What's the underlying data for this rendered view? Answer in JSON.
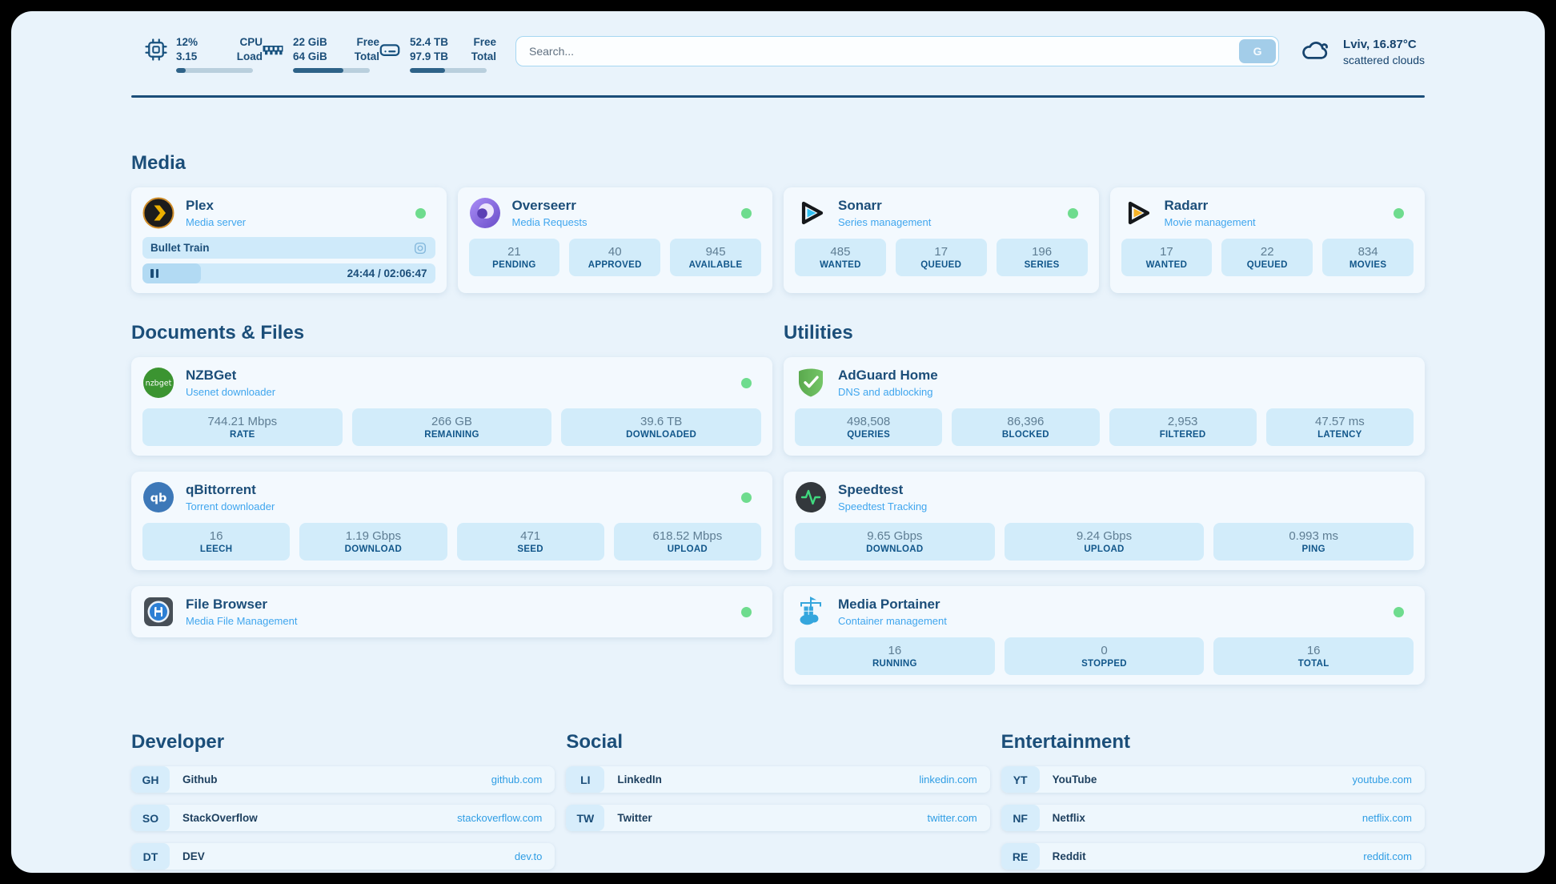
{
  "colors": {
    "page_background": "#e9f3fb",
    "accent_navy": "#1b4e79",
    "subtitle_blue": "#40a6ee",
    "link_blue": "#2f9de4",
    "stat_box_blue": "#d2ecfa",
    "status_green": "#6edc8e"
  },
  "topbar": {
    "cpu": {
      "value_top": "12%",
      "label_top": "CPU",
      "value_bottom": "3.15",
      "label_bottom": "Load",
      "progress_percent": 12
    },
    "ram": {
      "value_top": "22 GiB",
      "label_top": "Free",
      "value_bottom": "64 GiB",
      "label_bottom": "Total",
      "progress_percent": 66
    },
    "disk": {
      "value_top": "52.4 TB",
      "label_top": "Free",
      "value_bottom": "97.9 TB",
      "label_bottom": "Total",
      "progress_percent": 46
    },
    "search": {
      "placeholder": "Search...",
      "provider_button": "G"
    },
    "weather": {
      "location_temp": "Lviv, 16.87°C",
      "condition": "scattered clouds"
    }
  },
  "sections": {
    "media": "Media",
    "documents": "Documents & Files",
    "utilities": "Utilities",
    "developer": "Developer",
    "social": "Social",
    "entertainment": "Entertainment"
  },
  "services": {
    "plex": {
      "name": "Plex",
      "description": "Media server",
      "status": "online",
      "now_playing": {
        "title": "Bullet Train",
        "time": "24:44 / 02:06:47",
        "progress_percent": 20
      }
    },
    "overseerr": {
      "name": "Overseerr",
      "description": "Media Requests",
      "status": "online",
      "stats": [
        {
          "value": "21",
          "label": "PENDING"
        },
        {
          "value": "40",
          "label": "APPROVED"
        },
        {
          "value": "945",
          "label": "AVAILABLE"
        }
      ]
    },
    "sonarr": {
      "name": "Sonarr",
      "description": "Series management",
      "status": "online",
      "stats": [
        {
          "value": "485",
          "label": "WANTED"
        },
        {
          "value": "17",
          "label": "QUEUED"
        },
        {
          "value": "196",
          "label": "SERIES"
        }
      ]
    },
    "radarr": {
      "name": "Radarr",
      "description": "Movie management",
      "status": "online",
      "stats": [
        {
          "value": "17",
          "label": "WANTED"
        },
        {
          "value": "22",
          "label": "QUEUED"
        },
        {
          "value": "834",
          "label": "MOVIES"
        }
      ]
    },
    "nzbget": {
      "name": "NZBGet",
      "description": "Usenet downloader",
      "status": "online",
      "stats": [
        {
          "value": "744.21 Mbps",
          "label": "RATE"
        },
        {
          "value": "266 GB",
          "label": "REMAINING"
        },
        {
          "value": "39.6 TB",
          "label": "DOWNLOADED"
        }
      ]
    },
    "adguard": {
      "name": "AdGuard Home",
      "description": "DNS and adblocking",
      "stats": [
        {
          "value": "498,508",
          "label": "QUERIES"
        },
        {
          "value": "86,396",
          "label": "BLOCKED"
        },
        {
          "value": "2,953",
          "label": "FILTERED"
        },
        {
          "value": "47.57 ms",
          "label": "LATENCY"
        }
      ]
    },
    "qbittorrent": {
      "name": "qBittorrent",
      "description": "Torrent downloader",
      "status": "online",
      "stats": [
        {
          "value": "16",
          "label": "LEECH"
        },
        {
          "value": "1.19 Gbps",
          "label": "DOWNLOAD"
        },
        {
          "value": "471",
          "label": "SEED"
        },
        {
          "value": "618.52 Mbps",
          "label": "UPLOAD"
        }
      ]
    },
    "speedtest": {
      "name": "Speedtest",
      "description": "Speedtest Tracking",
      "stats": [
        {
          "value": "9.65 Gbps",
          "label": "DOWNLOAD"
        },
        {
          "value": "9.24 Gbps",
          "label": "UPLOAD"
        },
        {
          "value": "0.993 ms",
          "label": "PING"
        }
      ]
    },
    "filebrowser": {
      "name": "File Browser",
      "description": "Media File Management",
      "status": "online"
    },
    "portainer": {
      "name": "Media Portainer",
      "description": "Container management",
      "status": "online",
      "stats": [
        {
          "value": "16",
          "label": "RUNNING"
        },
        {
          "value": "0",
          "label": "STOPPED"
        },
        {
          "value": "16",
          "label": "TOTAL"
        }
      ]
    }
  },
  "bookmarks": {
    "developer": [
      {
        "abbr": "GH",
        "name": "Github",
        "url": "github.com"
      },
      {
        "abbr": "SO",
        "name": "StackOverflow",
        "url": "stackoverflow.com"
      },
      {
        "abbr": "DT",
        "name": "DEV",
        "url": "dev.to"
      }
    ],
    "social": [
      {
        "abbr": "LI",
        "name": "LinkedIn",
        "url": "linkedin.com"
      },
      {
        "abbr": "TW",
        "name": "Twitter",
        "url": "twitter.com"
      }
    ],
    "entertainment": [
      {
        "abbr": "YT",
        "name": "YouTube",
        "url": "youtube.com"
      },
      {
        "abbr": "NF",
        "name": "Netflix",
        "url": "netflix.com"
      },
      {
        "abbr": "RE",
        "name": "Reddit",
        "url": "reddit.com"
      }
    ]
  },
  "icons": [
    "cpu-icon",
    "ram-icon",
    "disk-icon",
    "cloud-icon",
    "search-provider-google",
    "plex-logo",
    "overseerr-logo",
    "sonarr-logo",
    "radarr-logo",
    "nzbget-logo",
    "adguard-logo",
    "qbittorrent-logo",
    "speedtest-logo",
    "filebrowser-logo",
    "portainer-logo",
    "pause-icon",
    "now-playing-settings-icon",
    "status-dot"
  ]
}
